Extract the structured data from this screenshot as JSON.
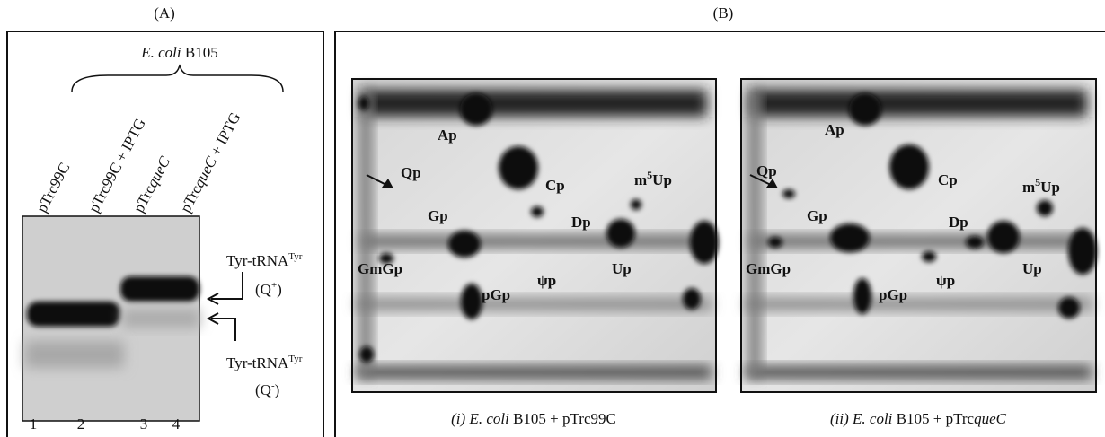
{
  "panel_a": {
    "label": "(A)",
    "strain": {
      "species": "E. coli",
      "name": " B105"
    },
    "lanes": [
      [
        "pTrc99C"
      ],
      [
        "pTrc99C + IPTG"
      ],
      [
        "pTrc",
        "queC"
      ],
      [
        "pTrc",
        "queC",
        " + IPTG"
      ]
    ],
    "lane_numbers": [
      "1",
      "2",
      "3",
      "4"
    ],
    "bands": [
      {
        "name": "Tyr-tRNA",
        "sup": "Tyr",
        "open": "(Q",
        "charge": "+",
        "close": ")"
      },
      {
        "name": "Tyr-tRNA",
        "sup": "Tyr",
        "open": "(Q",
        "charge": "-",
        "close": ")"
      }
    ]
  },
  "panel_b": {
    "label": "(B)",
    "plates": [
      {
        "caption": {
          "number": "(i) ",
          "species": "E. coli",
          "rest": " B105 + pTrc99C"
        },
        "spots": [
          "Ap",
          "Qp",
          "Cp",
          {
            "base": "m",
            "sup": "5",
            "rest": "Up"
          },
          "Gp",
          "Dp",
          "GmGp",
          "ψp",
          "Up",
          "pGp"
        ]
      },
      {
        "caption": {
          "number": "(ii) ",
          "species": "E. coli",
          "rest": " B105 + pTrc",
          "gene": "queC"
        },
        "spots": [
          "Ap",
          "Qp",
          "Cp",
          {
            "base": "m",
            "sup": "5",
            "rest": "Up"
          },
          "Gp",
          "Dp",
          "GmGp",
          "ψp",
          "Up",
          "pGp"
        ]
      }
    ]
  }
}
